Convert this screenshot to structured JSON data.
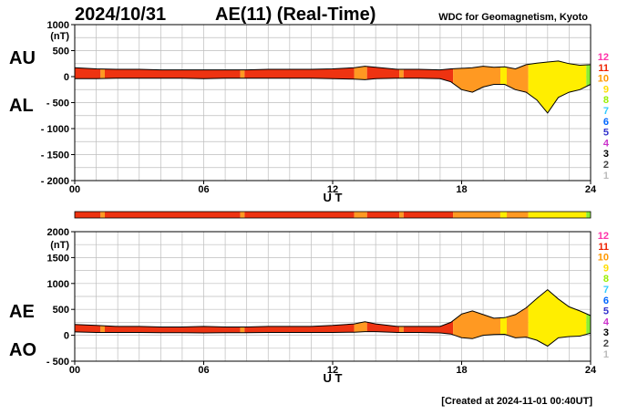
{
  "header": {
    "date": "2024/10/31",
    "title": "AE(11) (Real-Time)",
    "source": "WDC for Geomagnetism, Kyoto"
  },
  "footer": {
    "created": "[Created at 2024-11-01 00:40UT]"
  },
  "activity_scale": {
    "labels": [
      "12",
      "11",
      "10",
      "9",
      "8",
      "7",
      "6",
      "5",
      "4",
      "3",
      "2",
      "1"
    ],
    "colors": [
      "#ff33aa",
      "#ee2200",
      "#ff9900",
      "#ffdd00",
      "#99ee00",
      "#33ccff",
      "#0066ff",
      "#3333cc",
      "#cc33cc",
      "#000000",
      "#444444",
      "#bbbbbb"
    ]
  },
  "activity_bar": {
    "level_colors": {
      "11": "#ee3311",
      "10": "#ff9922",
      "9": "#ffee00",
      "8": "#88ee33"
    },
    "segments": [
      {
        "start": 0.0,
        "end": 1.2,
        "level": 11
      },
      {
        "start": 1.2,
        "end": 1.4,
        "level": 10
      },
      {
        "start": 1.4,
        "end": 7.7,
        "level": 11
      },
      {
        "start": 7.7,
        "end": 7.9,
        "level": 10
      },
      {
        "start": 7.9,
        "end": 13.0,
        "level": 11
      },
      {
        "start": 13.0,
        "end": 13.6,
        "level": 10
      },
      {
        "start": 13.6,
        "end": 15.1,
        "level": 11
      },
      {
        "start": 15.1,
        "end": 15.3,
        "level": 10
      },
      {
        "start": 15.3,
        "end": 17.6,
        "level": 11
      },
      {
        "start": 17.6,
        "end": 19.8,
        "level": 10
      },
      {
        "start": 19.8,
        "end": 20.1,
        "level": 9
      },
      {
        "start": 20.1,
        "end": 21.1,
        "level": 10
      },
      {
        "start": 21.1,
        "end": 23.8,
        "level": 9
      },
      {
        "start": 23.8,
        "end": 24.0,
        "level": 8
      }
    ]
  },
  "chart_data": [
    {
      "type": "area",
      "name": "AU/AL",
      "series_labels": [
        "AU",
        "AL"
      ],
      "y_unit": "(nT)",
      "ylim": [
        -2000,
        1000
      ],
      "yticks": [
        1000,
        500,
        0,
        -500,
        -1000,
        -1500,
        -2000
      ],
      "ytick_labels": [
        "1000",
        "500",
        "0",
        "- 500",
        "- 1000",
        "- 1500",
        "- 2000"
      ],
      "xlim": [
        0,
        24
      ],
      "xticks": [
        0,
        6,
        12,
        18,
        24
      ],
      "xtick_labels": [
        "00",
        "06",
        "12",
        "18",
        "24"
      ],
      "xlabel": "U T",
      "grid": true,
      "x": [
        0,
        1,
        2,
        3,
        4,
        5,
        6,
        7,
        8,
        9,
        10,
        11,
        12,
        13,
        13.5,
        14,
        15,
        16,
        17,
        17.5,
        18,
        18.5,
        19,
        19.5,
        20,
        20.5,
        21,
        21.5,
        22,
        22.5,
        23,
        23.5,
        24
      ],
      "series": [
        {
          "name": "AU",
          "values": [
            170,
            150,
            140,
            140,
            130,
            130,
            130,
            130,
            130,
            140,
            140,
            140,
            150,
            170,
            200,
            180,
            140,
            140,
            130,
            150,
            160,
            170,
            200,
            180,
            190,
            150,
            230,
            260,
            280,
            300,
            250,
            220,
            230
          ]
        },
        {
          "name": "AL",
          "values": [
            -40,
            -40,
            -30,
            -30,
            -30,
            -30,
            -40,
            -30,
            -30,
            -30,
            -30,
            -30,
            -40,
            -50,
            -60,
            -40,
            -30,
            -30,
            -40,
            -100,
            -250,
            -300,
            -200,
            -150,
            -150,
            -250,
            -300,
            -450,
            -700,
            -400,
            -300,
            -250,
            -150
          ]
        }
      ]
    },
    {
      "type": "area",
      "name": "AE/AO",
      "series_labels": [
        "AE",
        "AO"
      ],
      "y_unit": "(nT)",
      "ylim": [
        -500,
        2000
      ],
      "yticks": [
        2000,
        1500,
        1000,
        500,
        0,
        -500
      ],
      "ytick_labels": [
        "2000",
        "1500",
        "1000",
        "500",
        "0",
        "- 500"
      ],
      "xlim": [
        0,
        24
      ],
      "xticks": [
        0,
        6,
        12,
        18,
        24
      ],
      "xtick_labels": [
        "00",
        "06",
        "12",
        "18",
        "24"
      ],
      "xlabel": "U T",
      "grid": true,
      "x": [
        0,
        1,
        2,
        3,
        4,
        5,
        6,
        7,
        8,
        9,
        10,
        11,
        12,
        13,
        13.5,
        14,
        15,
        16,
        17,
        17.5,
        18,
        18.5,
        19,
        19.5,
        20,
        20.5,
        21,
        21.5,
        22,
        22.5,
        23,
        23.5,
        24
      ],
      "series": [
        {
          "name": "AE",
          "values": [
            210,
            190,
            170,
            170,
            160,
            160,
            170,
            160,
            160,
            170,
            170,
            170,
            190,
            220,
            260,
            220,
            170,
            170,
            170,
            250,
            410,
            470,
            400,
            330,
            340,
            400,
            530,
            710,
            880,
            700,
            550,
            470,
            380
          ]
        },
        {
          "name": "AO",
          "values": [
            65,
            55,
            55,
            55,
            50,
            50,
            45,
            50,
            50,
            55,
            55,
            55,
            55,
            60,
            70,
            70,
            55,
            55,
            45,
            25,
            -45,
            -65,
            0,
            15,
            20,
            -50,
            -35,
            -95,
            -210,
            -50,
            -25,
            -15,
            40
          ]
        }
      ]
    }
  ]
}
